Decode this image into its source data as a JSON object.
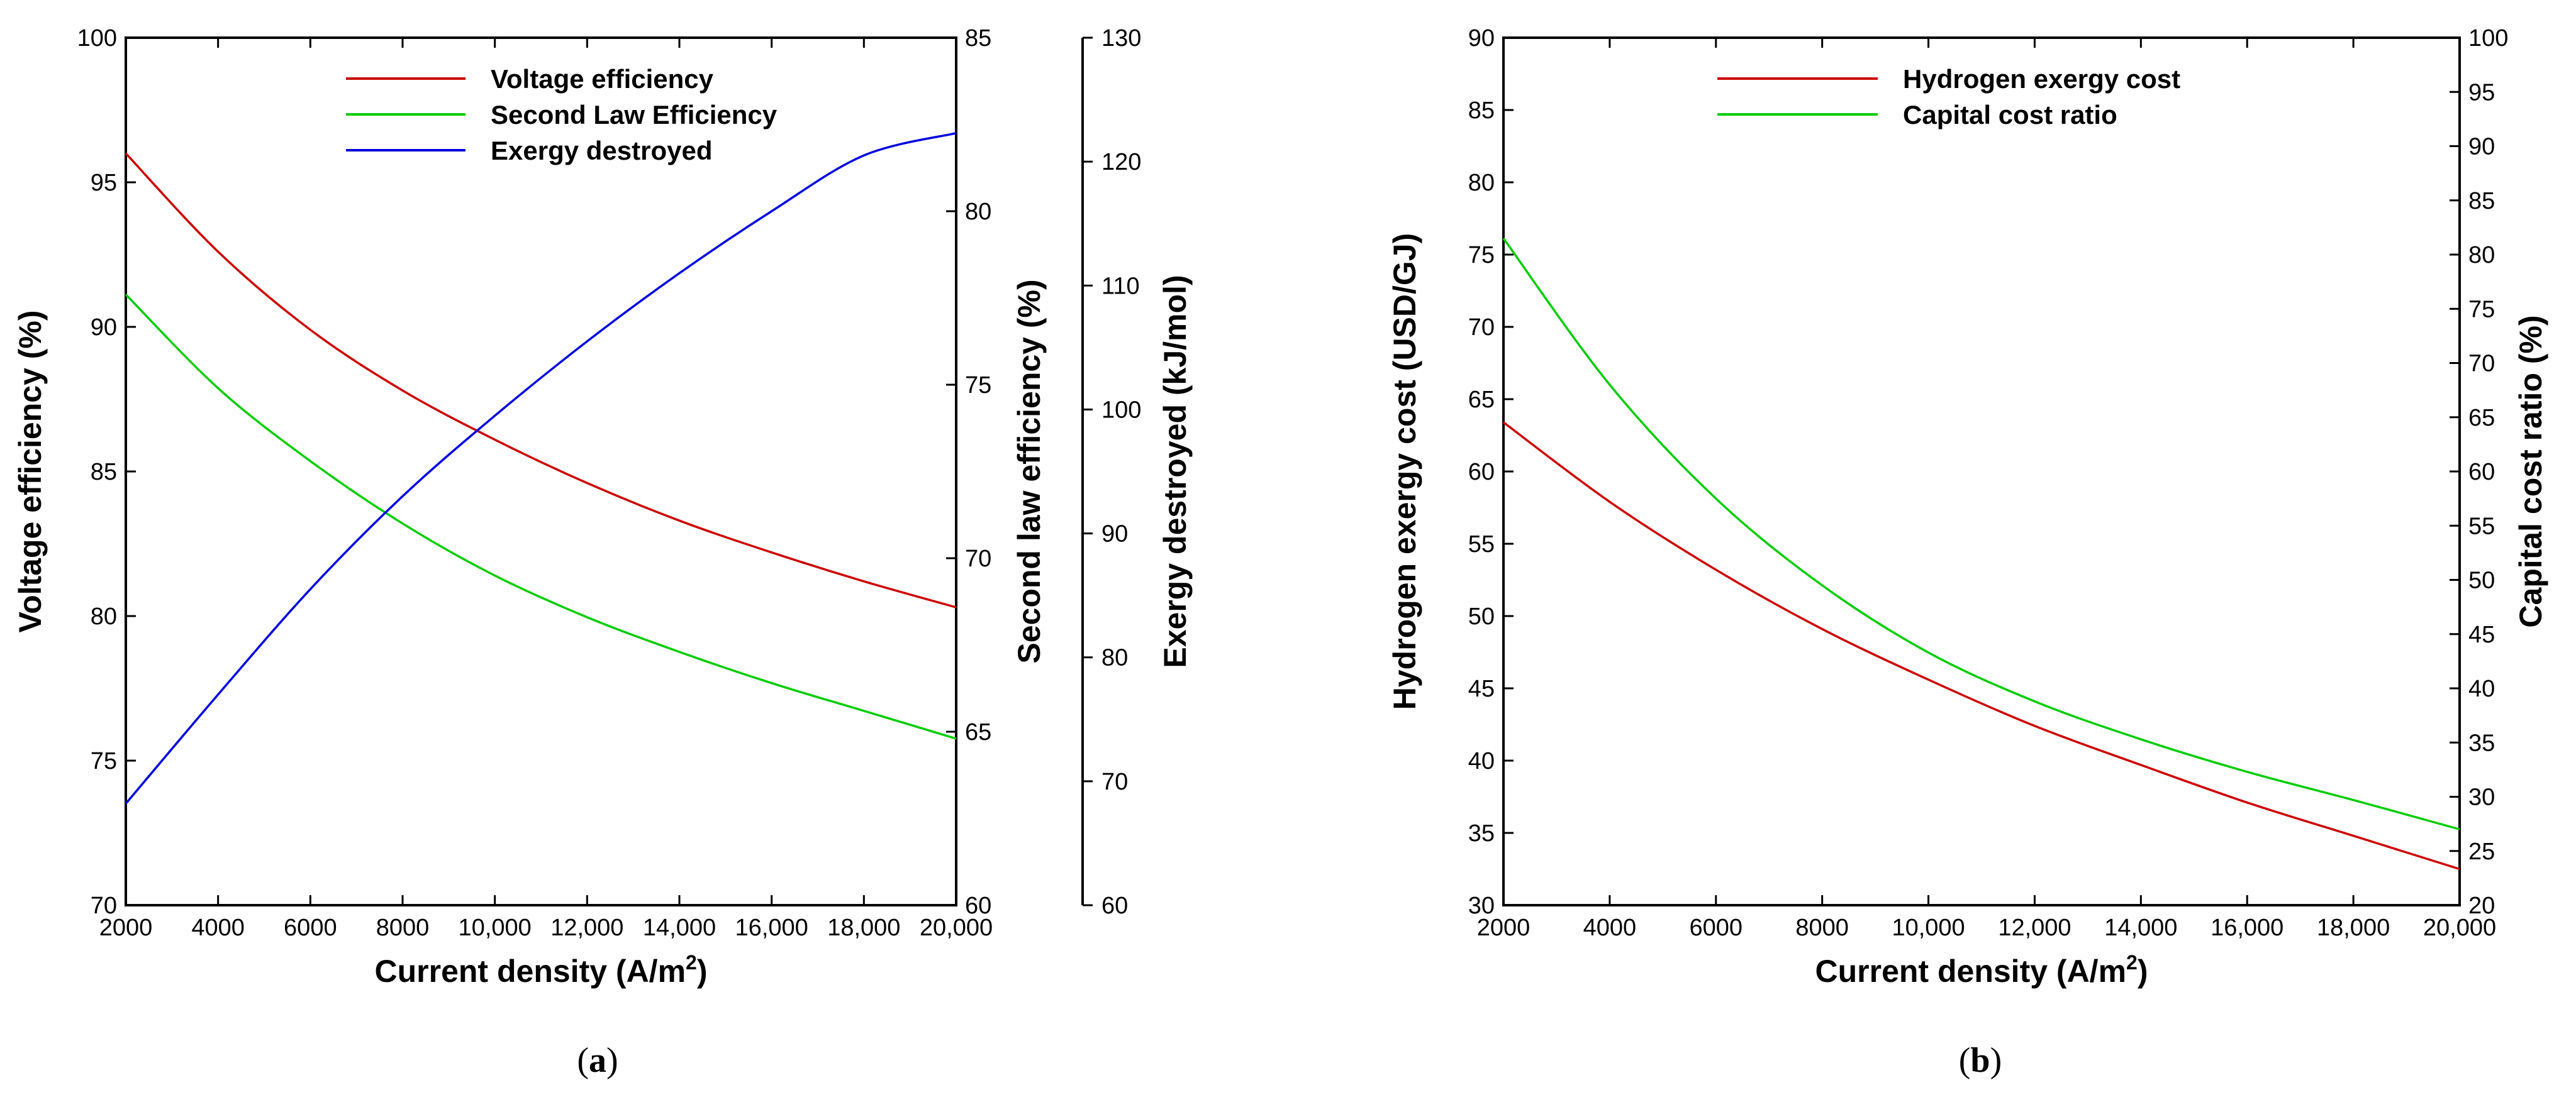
{
  "chart_data": [
    {
      "type": "line",
      "caption": "(a)",
      "caption_prefix": "(",
      "caption_letter": "a",
      "caption_suffix": ")",
      "xlabel": "Current density (A/m",
      "xlabel_sup": "2",
      "xlabel_end": ")",
      "xlim": [
        2000,
        20000
      ],
      "xticks": [
        2000,
        4000,
        6000,
        8000,
        10000,
        12000,
        14000,
        16000,
        18000,
        20000
      ],
      "xtick_labels": [
        "2000",
        "4000",
        "6000",
        "8000",
        "10,000",
        "12,000",
        "14,000",
        "16,000",
        "18,000",
        "20,000"
      ],
      "axes": {
        "left": {
          "label": "Voltage efficiency (%)",
          "lim": [
            70,
            100
          ],
          "ticks": [
            70,
            75,
            80,
            85,
            90,
            95,
            100
          ]
        },
        "right1": {
          "label": "Second law efficiency (%)",
          "lim": [
            60,
            85
          ],
          "ticks": [
            60,
            65,
            70,
            75,
            80,
            85
          ]
        },
        "right2": {
          "label": "Exergy destroyed (kJ/mol)",
          "lim": [
            60,
            130
          ],
          "ticks": [
            60,
            70,
            80,
            90,
            100,
            110,
            120,
            130
          ]
        }
      },
      "legend_position": "top-center",
      "series": [
        {
          "name": "Voltage efficiency",
          "color": "#cc0000",
          "axis": "left",
          "x": [
            2000,
            4000,
            6000,
            8000,
            10000,
            12000,
            14000,
            16000,
            18000,
            20000
          ],
          "values": [
            96.0,
            92.6,
            89.9,
            87.8,
            86.1,
            84.6,
            83.3,
            82.2,
            81.2,
            80.3
          ]
        },
        {
          "name": "Second Law Efficiency",
          "color": "#00cc00",
          "axis": "right1",
          "x": [
            2000,
            4000,
            6000,
            8000,
            10000,
            12000,
            14000,
            16000,
            18000,
            20000
          ],
          "values": [
            77.6,
            74.9,
            72.8,
            71.0,
            69.5,
            68.3,
            67.3,
            66.4,
            65.6,
            64.8
          ]
        },
        {
          "name": "Exergy destroyed",
          "color": "#0000dd",
          "axis": "right2",
          "x": [
            2000,
            4000,
            6000,
            8000,
            10000,
            12000,
            14000,
            16000,
            18000,
            20000
          ],
          "values": [
            68.2,
            77.0,
            85.5,
            93.0,
            99.5,
            105.5,
            111.0,
            116.0,
            120.5,
            122.3
          ]
        }
      ]
    },
    {
      "type": "line",
      "caption": "(b)",
      "caption_prefix": "(",
      "caption_letter": "b",
      "caption_suffix": ")",
      "xlabel": "Current density (A/m",
      "xlabel_sup": "2",
      "xlabel_end": ")",
      "xlim": [
        2000,
        20000
      ],
      "xticks": [
        2000,
        4000,
        6000,
        8000,
        10000,
        12000,
        14000,
        16000,
        18000,
        20000
      ],
      "xtick_labels": [
        "2000",
        "4000",
        "6000",
        "8000",
        "10,000",
        "12,000",
        "14,000",
        "16,000",
        "18,000",
        "20,000"
      ],
      "axes": {
        "left": {
          "label": "Hydrogen exergy cost (USD/GJ)",
          "lim": [
            30,
            90
          ],
          "ticks": [
            30,
            35,
            40,
            45,
            50,
            55,
            60,
            65,
            70,
            75,
            80,
            85,
            90
          ]
        },
        "right1": {
          "label": "Capital cost ratio (%)",
          "lim": [
            20,
            100
          ],
          "ticks": [
            20,
            25,
            30,
            35,
            40,
            45,
            50,
            55,
            60,
            65,
            70,
            75,
            80,
            85,
            90,
            95,
            100
          ]
        }
      },
      "legend_position": "top-center",
      "series": [
        {
          "name": " Hydrogen exergy cost",
          "color": "#cc0000",
          "axis": "left",
          "x": [
            2000,
            4000,
            6000,
            8000,
            10000,
            12000,
            14000,
            16000,
            18000,
            20000
          ],
          "values": [
            63.4,
            57.9,
            53.2,
            49.1,
            45.6,
            42.4,
            39.7,
            37.1,
            34.8,
            32.5
          ]
        },
        {
          "name": "Capital cost ratio",
          "color": "#00cc00",
          "axis": "right1",
          "x": [
            2000,
            4000,
            6000,
            8000,
            10000,
            12000,
            14000,
            16000,
            18000,
            20000
          ],
          "values": [
            81.5,
            68.0,
            57.5,
            49.5,
            43.3,
            38.8,
            35.3,
            32.3,
            29.7,
            27.0
          ]
        }
      ]
    }
  ]
}
